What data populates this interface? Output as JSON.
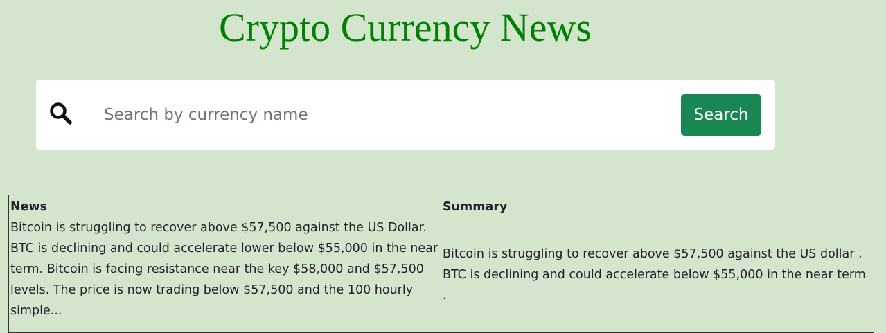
{
  "header": {
    "title": "Crypto Currency News"
  },
  "search": {
    "placeholder": "Search by currency name",
    "value": "",
    "button_label": "Search",
    "icon": "magnifying-glass"
  },
  "table": {
    "headers": [
      "News",
      "Summary"
    ],
    "rows": [
      {
        "news": "Bitcoin is struggling to recover above $57,500 against the US Dollar. BTC is declining and could accelerate lower below $55,000 in the near term. Bitcoin is facing resistance near the key $58,000 and $57,500 levels. The price is now trading below $57,500 and the 100 hourly simple...",
        "summary": "Bitcoin is struggling to recover above $57,500 against the US dollar . BTC is declining and could accelerate below $55,000 in the near term ."
      }
    ]
  },
  "colors": {
    "background": "#d3e5cc",
    "title": "#008000",
    "button": "#198754"
  }
}
